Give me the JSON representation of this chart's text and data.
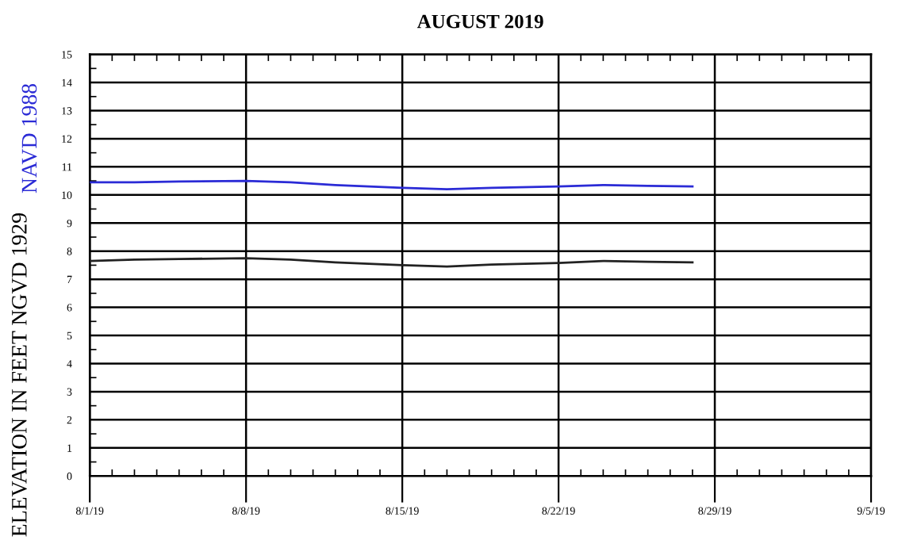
{
  "chart_data": {
    "type": "line",
    "title": "AUGUST 2019",
    "ylabel": "ELEVATION IN FEET NGVD 1929",
    "x": [
      "2019-08-01",
      "2019-08-03",
      "2019-08-05",
      "2019-08-08",
      "2019-08-10",
      "2019-08-12",
      "2019-08-15",
      "2019-08-17",
      "2019-08-19",
      "2019-08-22",
      "2019-08-24",
      "2019-08-26",
      "2019-08-28"
    ],
    "series": [
      {
        "name": "NAVD 1988",
        "color": "#2b2bd6",
        "values": [
          10.45,
          10.45,
          10.48,
          10.5,
          10.45,
          10.35,
          10.25,
          10.2,
          10.25,
          10.3,
          10.35,
          10.32,
          10.3
        ]
      },
      {
        "color": "#222222",
        "values": [
          7.65,
          7.7,
          7.72,
          7.75,
          7.7,
          7.6,
          7.5,
          7.45,
          7.52,
          7.58,
          7.65,
          7.62,
          7.6
        ]
      }
    ],
    "xlim": [
      "2019-08-01",
      "2019-09-05"
    ],
    "xticks": [
      {
        "value": "2019-08-01",
        "label": "8/1/19"
      },
      {
        "value": "2019-08-08",
        "label": "8/8/19"
      },
      {
        "value": "2019-08-15",
        "label": "8/15/19"
      },
      {
        "value": "2019-08-22",
        "label": "8/22/19"
      },
      {
        "value": "2019-08-29",
        "label": "8/29/19"
      },
      {
        "value": "2019-09-05",
        "label": "9/5/19"
      }
    ],
    "ylim": [
      0,
      15
    ],
    "yticks": [
      0,
      1,
      2,
      3,
      4,
      5,
      6,
      7,
      8,
      9,
      10,
      11,
      12,
      13,
      14,
      15
    ],
    "grid": true,
    "legend": false,
    "marker": "none",
    "line_style": "solid"
  }
}
